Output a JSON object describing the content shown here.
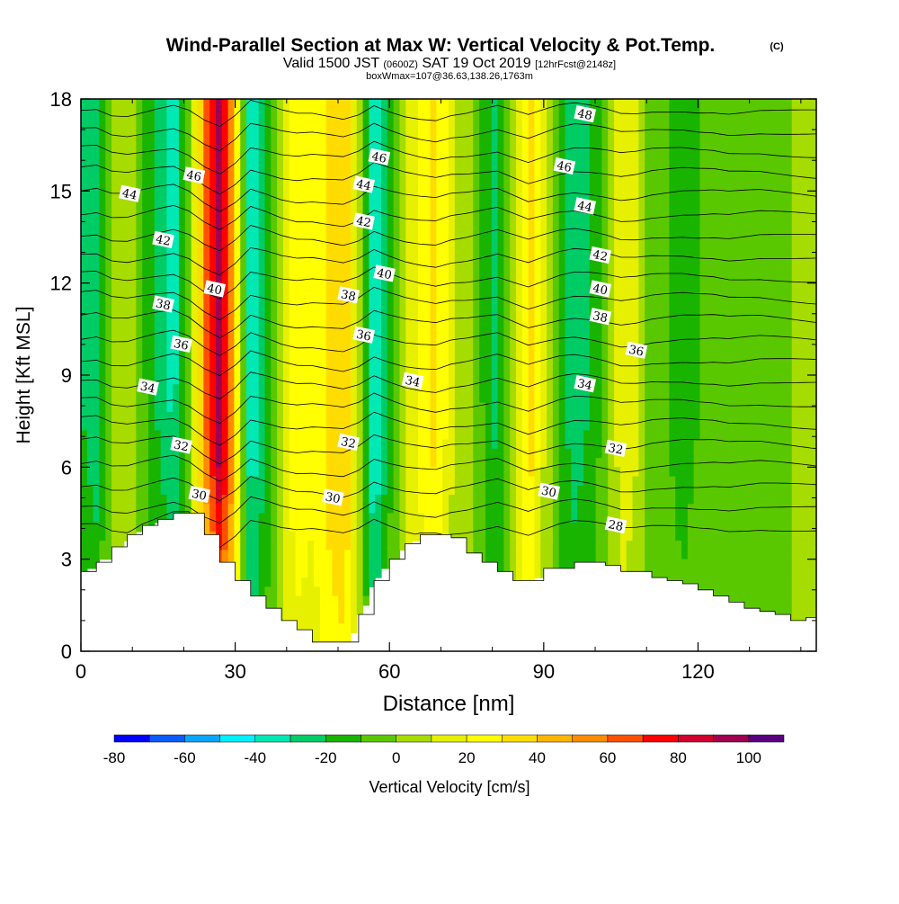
{
  "header": {
    "title": "Wind-Parallel Section at Max W: Vertical Velocity & Pot.Temp.",
    "copyright": "(C)",
    "valid_prefix": "Valid 1500 JST",
    "valid_utc": "(0600Z)",
    "valid_date": "SAT 19 Oct 2019",
    "forecast": "[12hrFcst@2148z]",
    "box_info": "boxWmax=107@36.63,138.26,1763m"
  },
  "chart_data": {
    "type": "heatmap",
    "title": "Wind-Parallel Section at Max W: Vertical Velocity & Pot.Temp.",
    "xlabel": "Distance [nm]",
    "ylabel": "Height [Kft MSL]",
    "xlim": [
      0,
      143
    ],
    "ylim": [
      0,
      18
    ],
    "x_ticks": [
      0,
      30,
      60,
      90,
      120
    ],
    "y_ticks": [
      0,
      3,
      6,
      9,
      12,
      15,
      18
    ],
    "colorbar": {
      "label": "Vertical Velocity [cm/s]",
      "tick_values": [
        -80,
        -60,
        -40,
        -20,
        0,
        20,
        40,
        60,
        80,
        100
      ],
      "boundaries": [
        -80,
        -70,
        -60,
        -50,
        -40,
        -30,
        -20,
        -10,
        0,
        10,
        20,
        30,
        40,
        50,
        60,
        70,
        80,
        90,
        100,
        110
      ],
      "colors": [
        "#0000ff",
        "#0a5cff",
        "#0aa6ff",
        "#00f0ff",
        "#00e8b4",
        "#00cc66",
        "#19b400",
        "#5ac800",
        "#a6dc00",
        "#e6f000",
        "#ffff00",
        "#ffdc00",
        "#ffb400",
        "#ff8c00",
        "#ff5000",
        "#ff0000",
        "#d2002d",
        "#a00050",
        "#5a0082"
      ]
    },
    "vertical_velocity_columns": {
      "x": [
        0,
        3,
        6,
        9,
        12,
        15,
        18,
        21,
        24,
        27,
        30,
        33,
        36,
        39,
        42,
        45,
        48,
        51,
        54,
        57,
        60,
        63,
        66,
        69,
        72,
        75,
        78,
        81,
        84,
        87,
        90,
        93,
        96,
        99,
        102,
        105,
        108,
        111,
        114,
        117,
        120,
        123,
        126,
        129,
        132,
        135,
        138,
        141,
        143
      ],
      "w": [
        -20,
        -28,
        5,
        10,
        -8,
        -25,
        -38,
        -5,
        55,
        95,
        40,
        -40,
        -18,
        10,
        25,
        20,
        30,
        40,
        10,
        -45,
        -15,
        10,
        25,
        35,
        12,
        5,
        -10,
        -25,
        5,
        35,
        10,
        -15,
        -28,
        -20,
        -5,
        15,
        10,
        -5,
        -10,
        -15,
        -10,
        -10,
        0,
        -5,
        -10,
        -5,
        0,
        5,
        8
      ]
    },
    "terrain": {
      "x": [
        0,
        3,
        6,
        9,
        12,
        15,
        18,
        21,
        24,
        27,
        30,
        33,
        36,
        39,
        42,
        45,
        48,
        51,
        54,
        57,
        60,
        63,
        66,
        69,
        72,
        75,
        78,
        81,
        84,
        87,
        90,
        93,
        96,
        99,
        102,
        105,
        108,
        111,
        114,
        117,
        120,
        123,
        126,
        129,
        132,
        135,
        138,
        141,
        143
      ],
      "height": [
        2.6,
        2.9,
        3.4,
        3.8,
        4.1,
        4.3,
        4.5,
        4.5,
        3.8,
        2.9,
        2.3,
        1.8,
        1.4,
        1.0,
        0.7,
        0.3,
        0.3,
        0.3,
        1.2,
        2.3,
        3.0,
        3.5,
        3.8,
        3.8,
        3.7,
        3.2,
        2.9,
        2.6,
        2.3,
        2.3,
        2.7,
        2.7,
        2.9,
        2.9,
        2.8,
        2.6,
        2.6,
        2.4,
        2.3,
        2.2,
        2.0,
        1.8,
        1.6,
        1.4,
        1.3,
        1.2,
        1.0,
        1.1,
        1.0
      ]
    },
    "theta_contours": {
      "levels": [
        28,
        29,
        30,
        31,
        32,
        33,
        34,
        35,
        36,
        37,
        38,
        39,
        40,
        41,
        42,
        43,
        44,
        45,
        46,
        47,
        48
      ],
      "base_height_at_28": 4.0,
      "kft_per_degree": 0.68
    },
    "theta_labels": [
      {
        "text": "48",
        "x": 98,
        "y": 17.5
      },
      {
        "text": "46",
        "x": 22,
        "y": 15.5
      },
      {
        "text": "46",
        "x": 58,
        "y": 16.1
      },
      {
        "text": "46",
        "x": 94,
        "y": 15.8
      },
      {
        "text": "44",
        "x": 9.5,
        "y": 14.9
      },
      {
        "text": "44",
        "x": 55,
        "y": 15.2
      },
      {
        "text": "44",
        "x": 98,
        "y": 14.5
      },
      {
        "text": "42",
        "x": 16,
        "y": 13.4
      },
      {
        "text": "42",
        "x": 55,
        "y": 14.0
      },
      {
        "text": "42",
        "x": 101,
        "y": 12.9
      },
      {
        "text": "40",
        "x": 26,
        "y": 11.8
      },
      {
        "text": "40",
        "x": 59,
        "y": 12.3
      },
      {
        "text": "40",
        "x": 101,
        "y": 11.8
      },
      {
        "text": "38",
        "x": 16,
        "y": 11.3
      },
      {
        "text": "38",
        "x": 52,
        "y": 11.6
      },
      {
        "text": "38",
        "x": 101,
        "y": 10.9
      },
      {
        "text": "36",
        "x": 19.5,
        "y": 10.0
      },
      {
        "text": "36",
        "x": 55,
        "y": 10.3
      },
      {
        "text": "36",
        "x": 108,
        "y": 9.8
      },
      {
        "text": "34",
        "x": 13,
        "y": 8.6
      },
      {
        "text": "34",
        "x": 64.5,
        "y": 8.8
      },
      {
        "text": "34",
        "x": 98,
        "y": 8.7
      },
      {
        "text": "32",
        "x": 19.5,
        "y": 6.7
      },
      {
        "text": "32",
        "x": 52,
        "y": 6.8
      },
      {
        "text": "32",
        "x": 104,
        "y": 6.6
      },
      {
        "text": "30",
        "x": 23,
        "y": 5.1
      },
      {
        "text": "30",
        "x": 49,
        "y": 5.0
      },
      {
        "text": "30",
        "x": 91,
        "y": 5.2
      },
      {
        "text": "28",
        "x": 104,
        "y": 4.1
      }
    ]
  }
}
